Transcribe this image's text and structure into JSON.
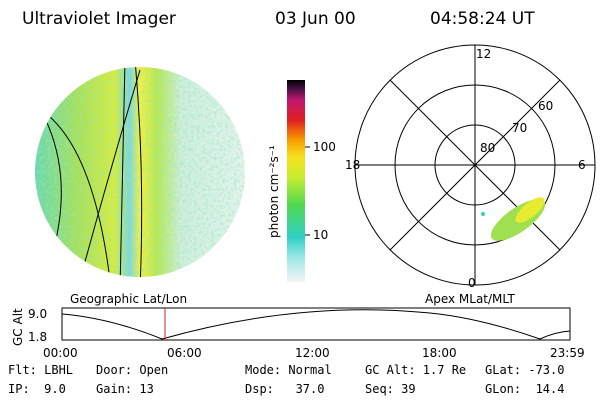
{
  "header": {
    "title": "Ultraviolet Imager",
    "date": "03 Jun 00",
    "time": "04:58:24 UT"
  },
  "colorbar": {
    "label": "photon cm⁻²s⁻¹",
    "ticks": [
      "100",
      "10"
    ]
  },
  "polar": {
    "mlt_labels": [
      "12",
      "18",
      "6",
      "0"
    ],
    "mlat_labels": [
      "60",
      "70",
      "80"
    ]
  },
  "projections": {
    "left": "Geographic Lat/Lon",
    "right": "Apex MLat/MLT"
  },
  "altitude_plot": {
    "y_label": "GC Alt",
    "y_ticks": [
      "9.0",
      "1.8"
    ],
    "x_ticks": [
      "00:00",
      "06:00",
      "12:00",
      "18:00",
      "23:59"
    ]
  },
  "footer": {
    "rows": [
      [
        "Flt: LBHL",
        "Door: Open",
        "Mode: Normal",
        "GC Alt: 1.7 Re",
        "GLat: -73.0"
      ],
      [
        "IP:  9.0",
        "Gain: 13",
        "Dsp:   37.0",
        "Seq: 39",
        "GLon:  14.4"
      ]
    ]
  }
}
